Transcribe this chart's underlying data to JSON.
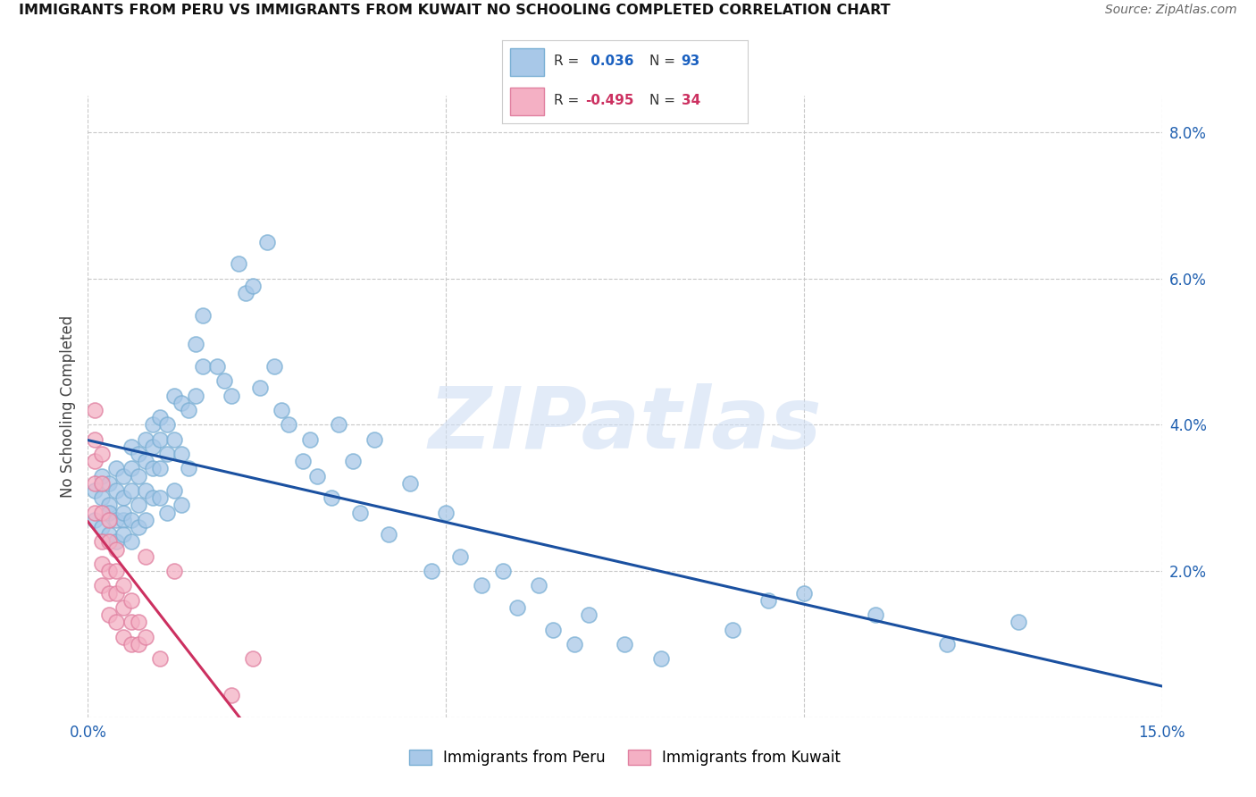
{
  "title": "IMMIGRANTS FROM PERU VS IMMIGRANTS FROM KUWAIT NO SCHOOLING COMPLETED CORRELATION CHART",
  "source": "Source: ZipAtlas.com",
  "ylabel": "No Schooling Completed",
  "xlim": [
    0.0,
    0.15
  ],
  "ylim": [
    0.0,
    0.085
  ],
  "peru_color": "#a8c8e8",
  "peru_edge": "#7aafd4",
  "kuwait_color": "#f4b0c4",
  "kuwait_edge": "#e080a0",
  "peru_line_color": "#1a50a0",
  "kuwait_line_color": "#cc3060",
  "peru_R": 0.036,
  "peru_N": 93,
  "kuwait_R": -0.495,
  "kuwait_N": 34,
  "watermark": "ZIPatlas",
  "watermark_color": "#d0dff4",
  "legend_label_peru": "Immigrants from Peru",
  "legend_label_kuwait": "Immigrants from Kuwait",
  "peru_scatter_x": [
    0.001,
    0.001,
    0.002,
    0.002,
    0.002,
    0.003,
    0.003,
    0.003,
    0.003,
    0.004,
    0.004,
    0.004,
    0.004,
    0.005,
    0.005,
    0.005,
    0.005,
    0.005,
    0.006,
    0.006,
    0.006,
    0.006,
    0.006,
    0.007,
    0.007,
    0.007,
    0.007,
    0.008,
    0.008,
    0.008,
    0.008,
    0.009,
    0.009,
    0.009,
    0.009,
    0.01,
    0.01,
    0.01,
    0.01,
    0.011,
    0.011,
    0.011,
    0.012,
    0.012,
    0.012,
    0.013,
    0.013,
    0.013,
    0.014,
    0.014,
    0.015,
    0.015,
    0.016,
    0.016,
    0.018,
    0.019,
    0.02,
    0.021,
    0.022,
    0.023,
    0.024,
    0.025,
    0.026,
    0.027,
    0.028,
    0.03,
    0.031,
    0.032,
    0.034,
    0.035,
    0.037,
    0.038,
    0.04,
    0.042,
    0.045,
    0.048,
    0.05,
    0.052,
    0.055,
    0.058,
    0.06,
    0.063,
    0.065,
    0.068,
    0.07,
    0.075,
    0.08,
    0.09,
    0.095,
    0.1,
    0.11,
    0.12,
    0.13
  ],
  "peru_scatter_y": [
    0.031,
    0.027,
    0.03,
    0.026,
    0.033,
    0.029,
    0.025,
    0.032,
    0.028,
    0.031,
    0.027,
    0.034,
    0.024,
    0.03,
    0.027,
    0.033,
    0.025,
    0.028,
    0.037,
    0.034,
    0.031,
    0.027,
    0.024,
    0.036,
    0.033,
    0.029,
    0.026,
    0.038,
    0.035,
    0.031,
    0.027,
    0.04,
    0.037,
    0.034,
    0.03,
    0.041,
    0.038,
    0.034,
    0.03,
    0.04,
    0.036,
    0.028,
    0.044,
    0.038,
    0.031,
    0.043,
    0.036,
    0.029,
    0.042,
    0.034,
    0.051,
    0.044,
    0.055,
    0.048,
    0.048,
    0.046,
    0.044,
    0.062,
    0.058,
    0.059,
    0.045,
    0.065,
    0.048,
    0.042,
    0.04,
    0.035,
    0.038,
    0.033,
    0.03,
    0.04,
    0.035,
    0.028,
    0.038,
    0.025,
    0.032,
    0.02,
    0.028,
    0.022,
    0.018,
    0.02,
    0.015,
    0.018,
    0.012,
    0.01,
    0.014,
    0.01,
    0.008,
    0.012,
    0.016,
    0.017,
    0.014,
    0.01,
    0.013
  ],
  "kuwait_scatter_x": [
    0.001,
    0.001,
    0.001,
    0.001,
    0.001,
    0.002,
    0.002,
    0.002,
    0.002,
    0.002,
    0.002,
    0.003,
    0.003,
    0.003,
    0.003,
    0.003,
    0.004,
    0.004,
    0.004,
    0.004,
    0.005,
    0.005,
    0.005,
    0.006,
    0.006,
    0.006,
    0.007,
    0.007,
    0.008,
    0.008,
    0.01,
    0.012,
    0.02,
    0.023
  ],
  "kuwait_scatter_y": [
    0.042,
    0.038,
    0.035,
    0.032,
    0.028,
    0.036,
    0.032,
    0.028,
    0.024,
    0.021,
    0.018,
    0.027,
    0.024,
    0.02,
    0.017,
    0.014,
    0.023,
    0.02,
    0.017,
    0.013,
    0.018,
    0.015,
    0.011,
    0.016,
    0.013,
    0.01,
    0.013,
    0.01,
    0.022,
    0.011,
    0.008,
    0.02,
    0.003,
    0.008
  ]
}
